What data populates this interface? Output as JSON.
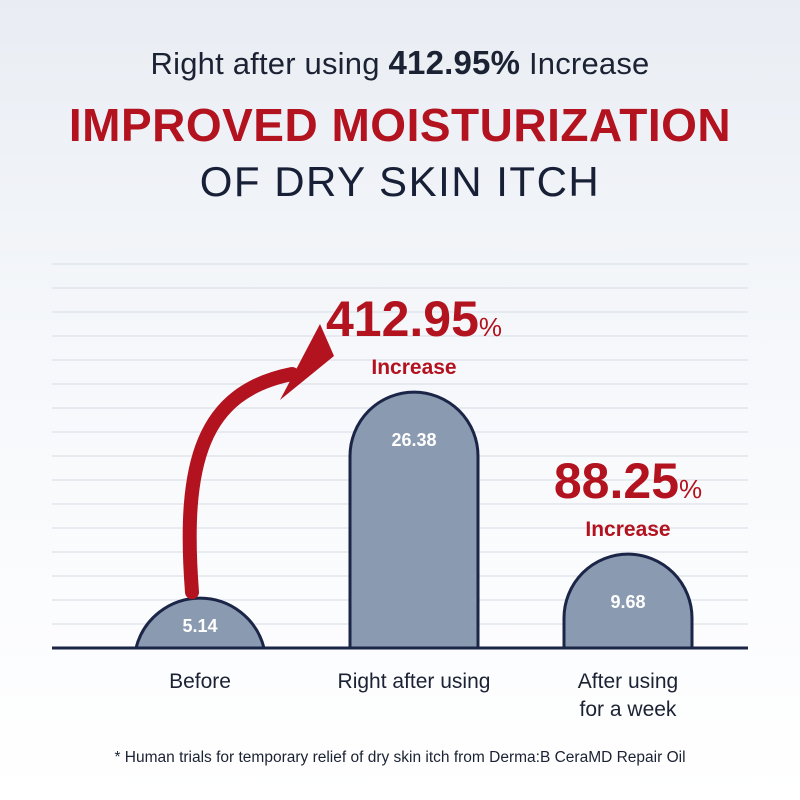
{
  "header": {
    "lead": "Right after using ",
    "lead_value": "412.95%",
    "lead_tail": " Increase",
    "title": "IMPROVED MOISTURIZATION",
    "subtitle": "OF DRY SKIN ITCH"
  },
  "chart_data": {
    "type": "bar",
    "categories": [
      "Before",
      "Right after using",
      "After using for a week"
    ],
    "category_lines": [
      [
        "Before"
      ],
      [
        "Right after using"
      ],
      [
        "After using",
        "for a week"
      ]
    ],
    "values": [
      5.14,
      26.38,
      9.68
    ],
    "value_labels": [
      "5.14",
      "26.38",
      "9.68"
    ],
    "annotations": [
      {
        "bar": 1,
        "value": "412.95",
        "unit": "%",
        "label": "Increase"
      },
      {
        "bar": 2,
        "value": "88.25",
        "unit": "%",
        "label": "Increase"
      }
    ],
    "arrow": {
      "from": 0,
      "to": 1
    },
    "ylim": [
      0,
      40
    ],
    "grid": true,
    "colors": {
      "bar": "#8a9ab0",
      "outline": "#1b2547",
      "accent": "#b3121f",
      "grid": "#d6dce5"
    }
  },
  "footnote": "* Human trials for temporary relief of dry skin itch from Derma:B CeraMD Repair Oil"
}
